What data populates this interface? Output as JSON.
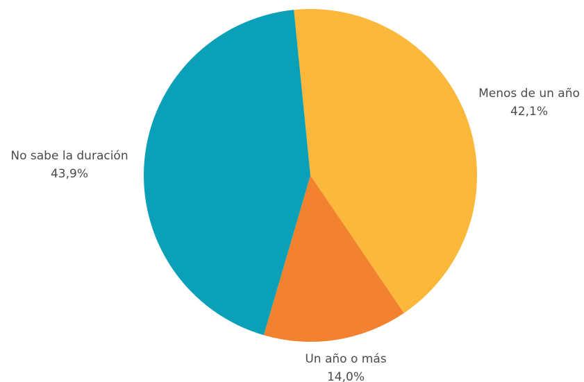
{
  "chart_data": {
    "type": "pie",
    "slices": [
      {
        "label": "Menos de un año",
        "value_label": "42,1%",
        "value": 42.1,
        "color": "#FBB83A"
      },
      {
        "label": "Un año o más",
        "value_label": "14,0%",
        "value": 14.0,
        "color": "#F28230"
      },
      {
        "label": "No sabe la duración",
        "value_label": "43,9%",
        "value": 43.9,
        "color": "#0AA1B8"
      }
    ]
  }
}
